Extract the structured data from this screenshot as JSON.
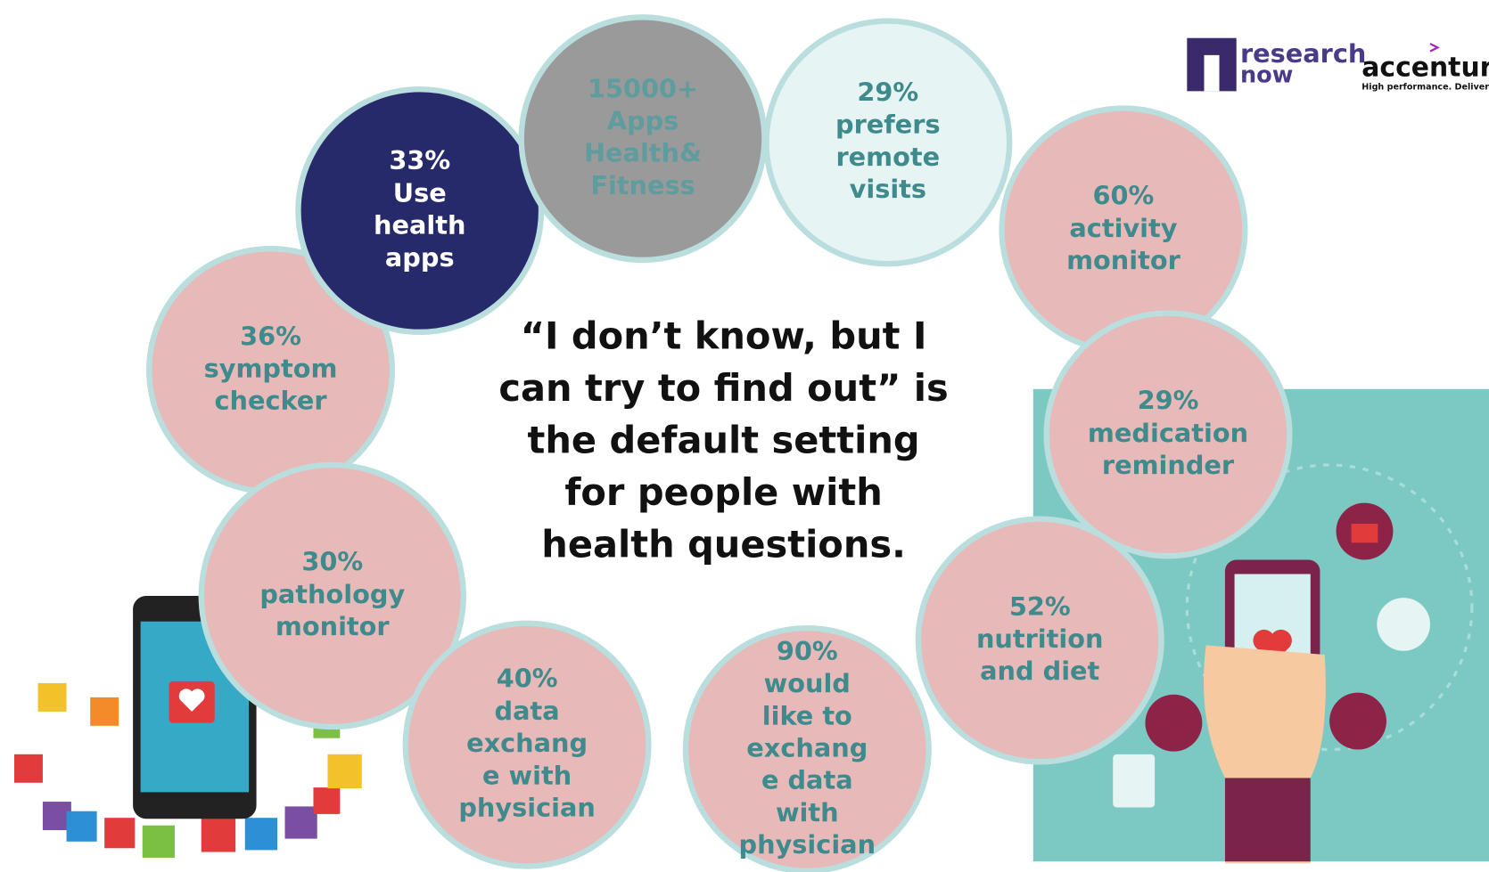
{
  "logos": {
    "research": "research",
    "now": "now",
    "accenture": "accenture",
    "tagline": "High performance. Delivered."
  },
  "quote": [
    "“I don’t know, but I",
    "can try to find out” is",
    "the default setting",
    "for people with",
    "health questions."
  ],
  "bubbles": [
    {
      "lines": [
        "33%",
        "Use",
        "health",
        "apps"
      ]
    },
    {
      "lines": [
        "15000+",
        "Apps",
        "Health&",
        "Fitness"
      ]
    },
    {
      "lines": [
        "29%",
        "prefers",
        "remote",
        "visits"
      ]
    },
    {
      "lines": [
        "60%",
        "activity",
        "monitor"
      ]
    },
    {
      "lines": [
        "29%",
        "medication",
        "reminder"
      ]
    },
    {
      "lines": [
        "52%",
        "nutrition",
        "and diet"
      ]
    },
    {
      "lines": [
        "90%",
        "would",
        "like to",
        "exchang",
        "e data",
        "with",
        "physician"
      ]
    },
    {
      "lines": [
        "40%",
        "data",
        "exchang",
        "e with",
        "physician"
      ]
    },
    {
      "lines": [
        "30%",
        "pathology",
        "monitor"
      ]
    },
    {
      "lines": [
        "36%",
        "symptom",
        "checker"
      ]
    }
  ]
}
